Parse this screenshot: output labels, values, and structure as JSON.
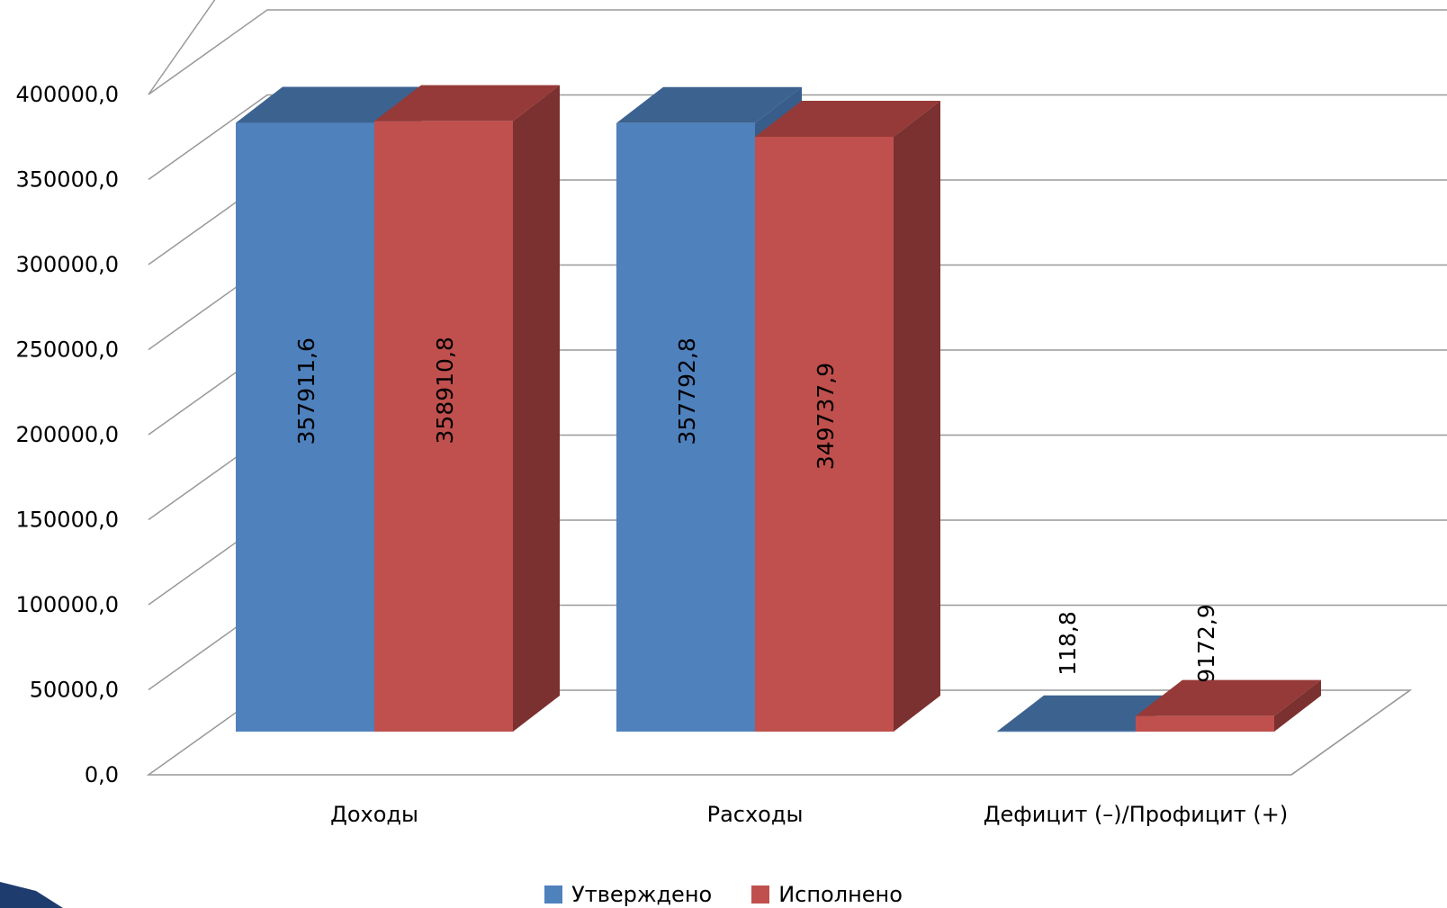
{
  "chart_data": {
    "type": "bar",
    "categories": [
      "Доходы",
      "Расходы",
      "Дефицит (–)/Профицит (+)"
    ],
    "series": [
      {
        "name": "Утверждено",
        "values": [
          357911.6,
          357792.8,
          118.8
        ],
        "labels": [
          "357911,6",
          "357792,8",
          "118,8"
        ]
      },
      {
        "name": "Исполнено",
        "values": [
          358910.8,
          349737.9,
          9172.9
        ],
        "labels": [
          "358910,8",
          "349737,9",
          "9172,9"
        ]
      }
    ],
    "ylim": [
      0,
      400000
    ],
    "yticks": [
      "0,0",
      "50000,0",
      "100000,0",
      "150000,0",
      "200000,0",
      "250000,0",
      "300000,0",
      "350000,0",
      "400000,0"
    ],
    "grid": true,
    "legend_position": "bottom",
    "style": "3d clustered column"
  },
  "colors": {
    "s1": {
      "front": "#4f81bd",
      "top": "#3c6290",
      "side": "#385d8a"
    },
    "s2": {
      "front": "#c0504d",
      "top": "#953a38",
      "side": "#7b3130"
    },
    "grid": "#999999"
  }
}
